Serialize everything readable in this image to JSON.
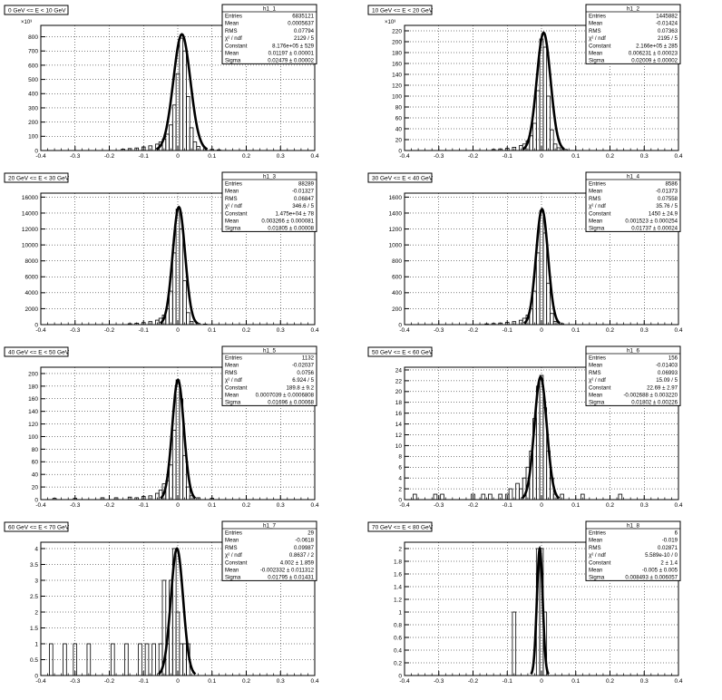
{
  "colors": {
    "frame": "#000000",
    "grid": "#000000",
    "background": "#ffffff"
  },
  "chart_data": [
    {
      "type": "histogram",
      "title": "0 GeV <= E < 10 GeV",
      "stats_name": "h1_1",
      "stats": [
        {
          "label": "Entries",
          "value": "6835121"
        },
        {
          "label": "Mean",
          "value": "0.0005637"
        },
        {
          "label": "RMS",
          "value": "0.07794"
        },
        {
          "label": "χ² / ndf",
          "value": "2129 / 5"
        },
        {
          "label": "Constant",
          "value": "8.176e+05 ± 529"
        },
        {
          "label": "Mean",
          "value": "0.01197 ± 0.00001"
        },
        {
          "label": "Sigma",
          "value": "0.02479 ± 0.00002"
        }
      ],
      "xlim": [
        -0.4,
        0.4
      ],
      "ylim": [
        0,
        880
      ],
      "y_multiplier": "×10³",
      "x_ticks": [
        "-0.4",
        "-0.3",
        "-0.2",
        "-0.1",
        "0",
        "0.1",
        "0.2",
        "0.3",
        "0.4"
      ],
      "y_ticks": [
        0,
        100,
        200,
        300,
        400,
        500,
        600,
        700,
        800
      ],
      "fit": {
        "constant": 817.6,
        "mean": 0.01197,
        "sigma": 0.02479
      },
      "bins": [
        {
          "x": -0.16,
          "y": 10
        },
        {
          "x": -0.14,
          "y": 14
        },
        {
          "x": -0.12,
          "y": 18
        },
        {
          "x": -0.1,
          "y": 25
        },
        {
          "x": -0.08,
          "y": 33
        },
        {
          "x": -0.06,
          "y": 45
        },
        {
          "x": -0.05,
          "y": 60
        },
        {
          "x": -0.04,
          "y": 80
        },
        {
          "x": -0.03,
          "y": 115
        },
        {
          "x": -0.02,
          "y": 180
        },
        {
          "x": -0.01,
          "y": 320
        },
        {
          "x": 0.0,
          "y": 540
        },
        {
          "x": 0.01,
          "y": 790
        },
        {
          "x": 0.02,
          "y": 700
        },
        {
          "x": 0.03,
          "y": 380
        },
        {
          "x": 0.04,
          "y": 160
        },
        {
          "x": 0.05,
          "y": 60
        },
        {
          "x": 0.06,
          "y": 28
        },
        {
          "x": 0.08,
          "y": 14
        },
        {
          "x": 0.1,
          "y": 8
        },
        {
          "x": 0.12,
          "y": 5
        }
      ]
    },
    {
      "type": "histogram",
      "title": "10 GeV <= E < 20 GeV",
      "stats_name": "h1_2",
      "stats": [
        {
          "label": "Entries",
          "value": "1445882"
        },
        {
          "label": "Mean",
          "value": "-0.01424"
        },
        {
          "label": "RMS",
          "value": "0.07363"
        },
        {
          "label": "χ² / ndf",
          "value": "2195 / 5"
        },
        {
          "label": "Constant",
          "value": "2.166e+05 ± 285"
        },
        {
          "label": "Mean",
          "value": "0.006231 ± 0.00023"
        },
        {
          "label": "Sigma",
          "value": "0.02009 ± 0.00002"
        }
      ],
      "xlim": [
        -0.4,
        0.4
      ],
      "ylim": [
        0,
        230
      ],
      "y_multiplier": "×10³",
      "x_ticks": [
        "-0.4",
        "-0.3",
        "-0.2",
        "-0.1",
        "0",
        "0.1",
        "0.2",
        "0.3",
        "0.4"
      ],
      "y_ticks": [
        0,
        20,
        40,
        60,
        80,
        100,
        120,
        140,
        160,
        180,
        200,
        220
      ],
      "fit": {
        "constant": 216.6,
        "mean": 0.006231,
        "sigma": 0.02009
      },
      "bins": [
        {
          "x": -0.14,
          "y": 2
        },
        {
          "x": -0.12,
          "y": 3
        },
        {
          "x": -0.1,
          "y": 4
        },
        {
          "x": -0.08,
          "y": 6
        },
        {
          "x": -0.06,
          "y": 9
        },
        {
          "x": -0.05,
          "y": 12
        },
        {
          "x": -0.04,
          "y": 18
        },
        {
          "x": -0.03,
          "y": 27
        },
        {
          "x": -0.02,
          "y": 50
        },
        {
          "x": -0.01,
          "y": 110
        },
        {
          "x": 0.0,
          "y": 205
        },
        {
          "x": 0.01,
          "y": 190
        },
        {
          "x": 0.02,
          "y": 100
        },
        {
          "x": 0.03,
          "y": 38
        },
        {
          "x": 0.04,
          "y": 12
        },
        {
          "x": 0.05,
          "y": 5
        },
        {
          "x": 0.07,
          "y": 2
        }
      ]
    },
    {
      "type": "histogram",
      "title": "20 GeV <= E < 30 GeV",
      "stats_name": "h1_3",
      "stats": [
        {
          "label": "Entries",
          "value": "88289"
        },
        {
          "label": "Mean",
          "value": "-0.01327"
        },
        {
          "label": "RMS",
          "value": "0.06847"
        },
        {
          "label": "χ² / ndf",
          "value": "346.6 / 5"
        },
        {
          "label": "Constant",
          "value": "1.475e+04 ± 78"
        },
        {
          "label": "Mean",
          "value": "0.003266 ± 0.000081"
        },
        {
          "label": "Sigma",
          "value": "0.01805 ± 0.00008"
        }
      ],
      "xlim": [
        -0.4,
        0.4
      ],
      "ylim": [
        0,
        16500
      ],
      "y_multiplier": "",
      "x_ticks": [
        "-0.4",
        "-0.3",
        "-0.2",
        "-0.1",
        "0",
        "0.1",
        "0.2",
        "0.3",
        "0.4"
      ],
      "y_ticks": [
        0,
        2000,
        4000,
        6000,
        8000,
        10000,
        12000,
        14000,
        16000
      ],
      "fit": {
        "constant": 14750,
        "mean": 0.003266,
        "sigma": 0.01805
      },
      "bins": [
        {
          "x": -0.14,
          "y": 120
        },
        {
          "x": -0.12,
          "y": 180
        },
        {
          "x": -0.1,
          "y": 260
        },
        {
          "x": -0.08,
          "y": 380
        },
        {
          "x": -0.06,
          "y": 560
        },
        {
          "x": -0.05,
          "y": 800
        },
        {
          "x": -0.04,
          "y": 1200
        },
        {
          "x": -0.03,
          "y": 2000
        },
        {
          "x": -0.02,
          "y": 4200
        },
        {
          "x": -0.01,
          "y": 9000
        },
        {
          "x": 0.0,
          "y": 14500
        },
        {
          "x": 0.01,
          "y": 12000
        },
        {
          "x": 0.02,
          "y": 5500
        },
        {
          "x": 0.03,
          "y": 1500
        },
        {
          "x": 0.04,
          "y": 400
        },
        {
          "x": 0.06,
          "y": 150
        },
        {
          "x": 0.08,
          "y": 60
        }
      ]
    },
    {
      "type": "histogram",
      "title": "30 GeV <= E < 40 GeV",
      "stats_name": "h1_4",
      "stats": [
        {
          "label": "Entries",
          "value": "8586"
        },
        {
          "label": "Mean",
          "value": "-0.01373"
        },
        {
          "label": "RMS",
          "value": "0.07558"
        },
        {
          "label": "χ² / ndf",
          "value": "35.76 / 5"
        },
        {
          "label": "Constant",
          "value": "1450 ± 24.9"
        },
        {
          "label": "Mean",
          "value": "0.001523 ± 0.000254"
        },
        {
          "label": "Sigma",
          "value": "0.01737 ± 0.00024"
        }
      ],
      "xlim": [
        -0.4,
        0.4
      ],
      "ylim": [
        0,
        1650
      ],
      "y_multiplier": "",
      "x_ticks": [
        "-0.4",
        "-0.3",
        "-0.2",
        "-0.1",
        "0",
        "0.1",
        "0.2",
        "0.3",
        "0.4"
      ],
      "y_ticks": [
        0,
        200,
        400,
        600,
        800,
        1000,
        1200,
        1400,
        1600
      ],
      "fit": {
        "constant": 1450,
        "mean": 0.001523,
        "sigma": 0.01737
      },
      "bins": [
        {
          "x": -0.16,
          "y": 10
        },
        {
          "x": -0.14,
          "y": 14
        },
        {
          "x": -0.12,
          "y": 20
        },
        {
          "x": -0.1,
          "y": 28
        },
        {
          "x": -0.08,
          "y": 38
        },
        {
          "x": -0.06,
          "y": 55
        },
        {
          "x": -0.05,
          "y": 80
        },
        {
          "x": -0.04,
          "y": 120
        },
        {
          "x": -0.03,
          "y": 200
        },
        {
          "x": -0.02,
          "y": 420
        },
        {
          "x": -0.01,
          "y": 900
        },
        {
          "x": 0.0,
          "y": 1430
        },
        {
          "x": 0.01,
          "y": 1150
        },
        {
          "x": 0.02,
          "y": 520
        },
        {
          "x": 0.03,
          "y": 140
        },
        {
          "x": 0.04,
          "y": 40
        },
        {
          "x": 0.06,
          "y": 12
        }
      ]
    },
    {
      "type": "histogram",
      "title": "40 GeV <= E < 50 GeV",
      "stats_name": "h1_5",
      "stats": [
        {
          "label": "Entries",
          "value": "1132"
        },
        {
          "label": "Mean",
          "value": "-0.02037"
        },
        {
          "label": "RMS",
          "value": "0.0756"
        },
        {
          "label": "χ² / ndf",
          "value": "6.924 / 5"
        },
        {
          "label": "Constant",
          "value": "189.8 ± 9.2"
        },
        {
          "label": "Mean",
          "value": "0.0007039 ± 0.0006808"
        },
        {
          "label": "Sigma",
          "value": "0.01696 ± 0.00068"
        }
      ],
      "xlim": [
        -0.4,
        0.4
      ],
      "ylim": [
        0,
        210
      ],
      "y_multiplier": "",
      "x_ticks": [
        "-0.4",
        "-0.3",
        "-0.2",
        "-0.1",
        "0",
        "0.1",
        "0.2",
        "0.3",
        "0.4"
      ],
      "y_ticks": [
        0,
        20,
        40,
        60,
        80,
        100,
        120,
        140,
        160,
        180,
        200
      ],
      "fit": {
        "constant": 189.8,
        "mean": 0.0007039,
        "sigma": 0.01696
      },
      "bins": [
        {
          "x": -0.36,
          "y": 2
        },
        {
          "x": -0.3,
          "y": 2
        },
        {
          "x": -0.22,
          "y": 3
        },
        {
          "x": -0.18,
          "y": 3
        },
        {
          "x": -0.14,
          "y": 4
        },
        {
          "x": -0.12,
          "y": 3
        },
        {
          "x": -0.1,
          "y": 5
        },
        {
          "x": -0.08,
          "y": 6
        },
        {
          "x": -0.06,
          "y": 10
        },
        {
          "x": -0.05,
          "y": 15
        },
        {
          "x": -0.04,
          "y": 25
        },
        {
          "x": -0.03,
          "y": 30
        },
        {
          "x": -0.02,
          "y": 55
        },
        {
          "x": -0.01,
          "y": 110
        },
        {
          "x": 0.0,
          "y": 190
        },
        {
          "x": 0.01,
          "y": 160
        },
        {
          "x": 0.02,
          "y": 70
        },
        {
          "x": 0.03,
          "y": 20
        },
        {
          "x": 0.04,
          "y": 6
        },
        {
          "x": 0.06,
          "y": 3
        },
        {
          "x": 0.1,
          "y": 2
        }
      ]
    },
    {
      "type": "histogram",
      "title": "50 GeV <= E < 60 GeV",
      "stats_name": "h1_6",
      "stats": [
        {
          "label": "Entries",
          "value": "156"
        },
        {
          "label": "Mean",
          "value": "-0.01403"
        },
        {
          "label": "RMS",
          "value": "0.06993"
        },
        {
          "label": "χ² / ndf",
          "value": "15.09 / 5"
        },
        {
          "label": "Constant",
          "value": "22.69 ± 2.97"
        },
        {
          "label": "Mean",
          "value": "-0.002688 ± 0.003220"
        },
        {
          "label": "Sigma",
          "value": "0.01802 ± 0.00226"
        }
      ],
      "xlim": [
        -0.4,
        0.4
      ],
      "ylim": [
        0,
        24.5
      ],
      "y_multiplier": "",
      "x_ticks": [
        "-0.4",
        "-0.3",
        "-0.2",
        "-0.1",
        "0",
        "0.1",
        "0.2",
        "0.3",
        "0.4"
      ],
      "y_ticks": [
        0,
        2,
        4,
        6,
        8,
        10,
        12,
        14,
        16,
        18,
        20,
        22,
        24
      ],
      "fit": {
        "constant": 22.69,
        "mean": -0.002688,
        "sigma": 0.01802
      },
      "bins": [
        {
          "x": -0.37,
          "y": 1
        },
        {
          "x": -0.31,
          "y": 1
        },
        {
          "x": -0.29,
          "y": 1
        },
        {
          "x": -0.2,
          "y": 1
        },
        {
          "x": -0.17,
          "y": 1
        },
        {
          "x": -0.15,
          "y": 1
        },
        {
          "x": -0.12,
          "y": 1
        },
        {
          "x": -0.1,
          "y": 1
        },
        {
          "x": -0.09,
          "y": 2
        },
        {
          "x": -0.07,
          "y": 3
        },
        {
          "x": -0.06,
          "y": 2
        },
        {
          "x": -0.05,
          "y": 4
        },
        {
          "x": -0.04,
          "y": 6
        },
        {
          "x": -0.03,
          "y": 9
        },
        {
          "x": -0.02,
          "y": 15
        },
        {
          "x": -0.01,
          "y": 21
        },
        {
          "x": 0.0,
          "y": 23
        },
        {
          "x": 0.01,
          "y": 17
        },
        {
          "x": 0.02,
          "y": 9
        },
        {
          "x": 0.03,
          "y": 4
        },
        {
          "x": 0.04,
          "y": 1
        },
        {
          "x": 0.06,
          "y": 1
        },
        {
          "x": 0.12,
          "y": 1
        },
        {
          "x": 0.23,
          "y": 1
        }
      ]
    },
    {
      "type": "histogram",
      "title": "60 GeV <= E < 70 GeV",
      "stats_name": "h1_7",
      "stats": [
        {
          "label": "Entries",
          "value": "29"
        },
        {
          "label": "Mean",
          "value": "-0.0618"
        },
        {
          "label": "RMS",
          "value": "0.09987"
        },
        {
          "label": "χ² / ndf",
          "value": "0.8637 / 2"
        },
        {
          "label": "Constant",
          "value": "4.002 ± 1.859"
        },
        {
          "label": "Mean",
          "value": "-0.002332 ± 0.011312"
        },
        {
          "label": "Sigma",
          "value": "0.01795 ± 0.01431"
        }
      ],
      "xlim": [
        -0.4,
        0.4
      ],
      "ylim": [
        0,
        4.2
      ],
      "y_multiplier": "",
      "x_ticks": [
        "-0.4",
        "-0.3",
        "-0.2",
        "-0.1",
        "0",
        "0.1",
        "0.2",
        "0.3",
        "0.4"
      ],
      "y_ticks": [
        0,
        0.5,
        1,
        1.5,
        2,
        2.5,
        3,
        3.5,
        4
      ],
      "fit": {
        "constant": 4.002,
        "mean": -0.002332,
        "sigma": 0.01795
      },
      "bins": [
        {
          "x": -0.37,
          "y": 1
        },
        {
          "x": -0.33,
          "y": 1
        },
        {
          "x": -0.3,
          "y": 1
        },
        {
          "x": -0.26,
          "y": 1
        },
        {
          "x": -0.19,
          "y": 1
        },
        {
          "x": -0.15,
          "y": 1
        },
        {
          "x": -0.11,
          "y": 1
        },
        {
          "x": -0.09,
          "y": 1
        },
        {
          "x": -0.07,
          "y": 1
        },
        {
          "x": -0.05,
          "y": 1
        },
        {
          "x": -0.04,
          "y": 3
        },
        {
          "x": -0.03,
          "y": 1
        },
        {
          "x": -0.02,
          "y": 3
        },
        {
          "x": -0.01,
          "y": 4
        },
        {
          "x": 0.0,
          "y": 2
        },
        {
          "x": 0.01,
          "y": 1
        },
        {
          "x": 0.02,
          "y": 1
        },
        {
          "x": 0.03,
          "y": 1
        }
      ]
    },
    {
      "type": "histogram",
      "title": "70 GeV <= E < 80 GeV",
      "stats_name": "h1_8",
      "stats": [
        {
          "label": "Entries",
          "value": "6"
        },
        {
          "label": "Mean",
          "value": "-0.019"
        },
        {
          "label": "RMS",
          "value": "0.02871"
        },
        {
          "label": "χ² / ndf",
          "value": "5.589e-10 / 0"
        },
        {
          "label": "Constant",
          "value": "2 ± 1.4"
        },
        {
          "label": "Mean",
          "value": "-0.005 ± 0.005"
        },
        {
          "label": "Sigma",
          "value": "0.008493 ± 0.006057"
        }
      ],
      "xlim": [
        -0.4,
        0.4
      ],
      "ylim": [
        0,
        2.1
      ],
      "y_multiplier": "",
      "x_ticks": [
        "-0.4",
        "-0.3",
        "-0.2",
        "-0.1",
        "0",
        "0.1",
        "0.2",
        "0.3",
        "0.4"
      ],
      "y_ticks": [
        0,
        0.2,
        0.4,
        0.6,
        0.8,
        1,
        1.2,
        1.4,
        1.6,
        1.8,
        2
      ],
      "fit": {
        "constant": 2,
        "mean": -0.005,
        "sigma": 0.008493
      },
      "bins": [
        {
          "x": -0.08,
          "y": 1
        },
        {
          "x": -0.01,
          "y": 2
        },
        {
          "x": 0.0,
          "y": 2
        },
        {
          "x": 0.01,
          "y": 1
        }
      ]
    }
  ]
}
